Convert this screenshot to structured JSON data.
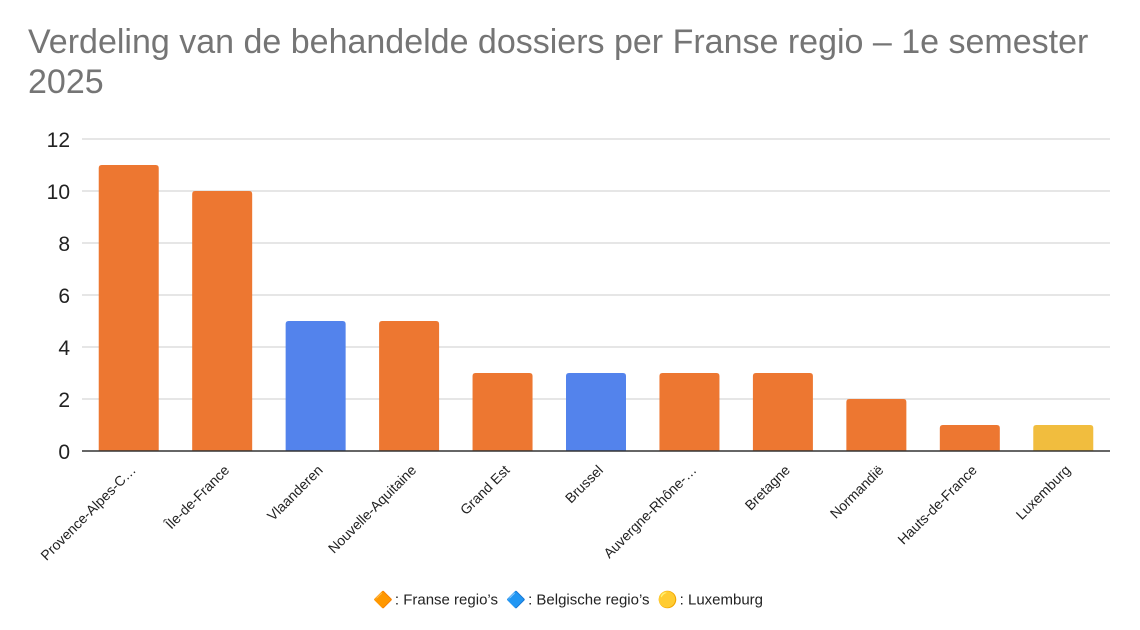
{
  "chart_data": {
    "type": "bar",
    "title": "Verdeling van de behandelde dossiers per Franse regio – 1e semester 2025",
    "categories": [
      "Provence-Alpes-C…",
      "Île-de-France",
      "Vlaanderen",
      "Nouvelle-Aquitaine",
      "Grand Est",
      "Brussel",
      "Auvergne-Rhône-…",
      "Bretagne",
      "Normandië",
      "Hauts-de-France",
      "Luxemburg"
    ],
    "values": [
      11,
      10,
      5,
      5,
      3,
      3,
      3,
      3,
      2,
      1,
      1
    ],
    "bar_groups": [
      "fr",
      "fr",
      "be",
      "fr",
      "fr",
      "be",
      "fr",
      "fr",
      "fr",
      "fr",
      "lu"
    ],
    "group_colors": {
      "fr": "#ED7731",
      "be": "#5383EC",
      "lu": "#F1BD3E"
    },
    "ylim": [
      0,
      12
    ],
    "yticks": [
      0,
      2,
      4,
      6,
      8,
      10,
      12
    ],
    "grid": true,
    "legend_position": "bottom",
    "legend": [
      {
        "icon": "🔶",
        "icon_name": "orange-diamond-icon",
        "label": ": Franse regio’s"
      },
      {
        "icon": "🔷",
        "icon_name": "blue-diamond-icon",
        "label": ": Belgische regio’s"
      },
      {
        "icon": "🟡",
        "icon_name": "yellow-circle-icon",
        "label": ": Luxemburg"
      }
    ]
  }
}
